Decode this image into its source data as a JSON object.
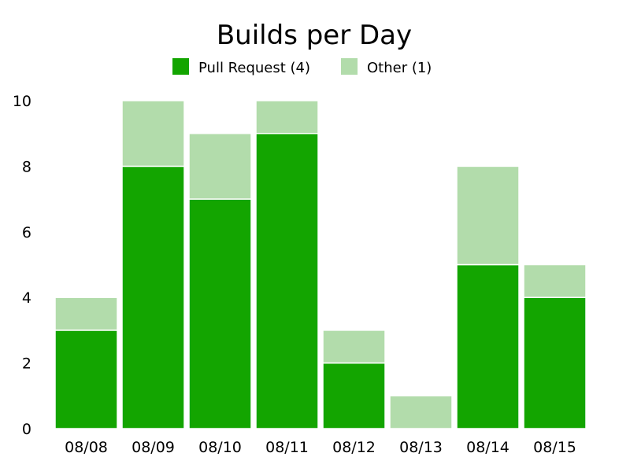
{
  "chart_data": {
    "type": "bar",
    "stacked": true,
    "title": "Builds per Day",
    "xlabel": "",
    "ylabel": "",
    "categories": [
      "08/08",
      "08/09",
      "08/10",
      "08/11",
      "08/12",
      "08/13",
      "08/14",
      "08/15"
    ],
    "series": [
      {
        "name": "Pull Request (4)",
        "color": "#13a500",
        "values": [
          3,
          8,
          7,
          9,
          2,
          0,
          5,
          4
        ]
      },
      {
        "name": "Other (1)",
        "color": "#b2dcab",
        "values": [
          1,
          2,
          2,
          1,
          1,
          1,
          3,
          1
        ]
      }
    ],
    "ylim": [
      0,
      10
    ],
    "yticks": [
      0,
      2,
      4,
      6,
      8,
      10
    ],
    "grid": false,
    "legend_position": "top-center"
  }
}
